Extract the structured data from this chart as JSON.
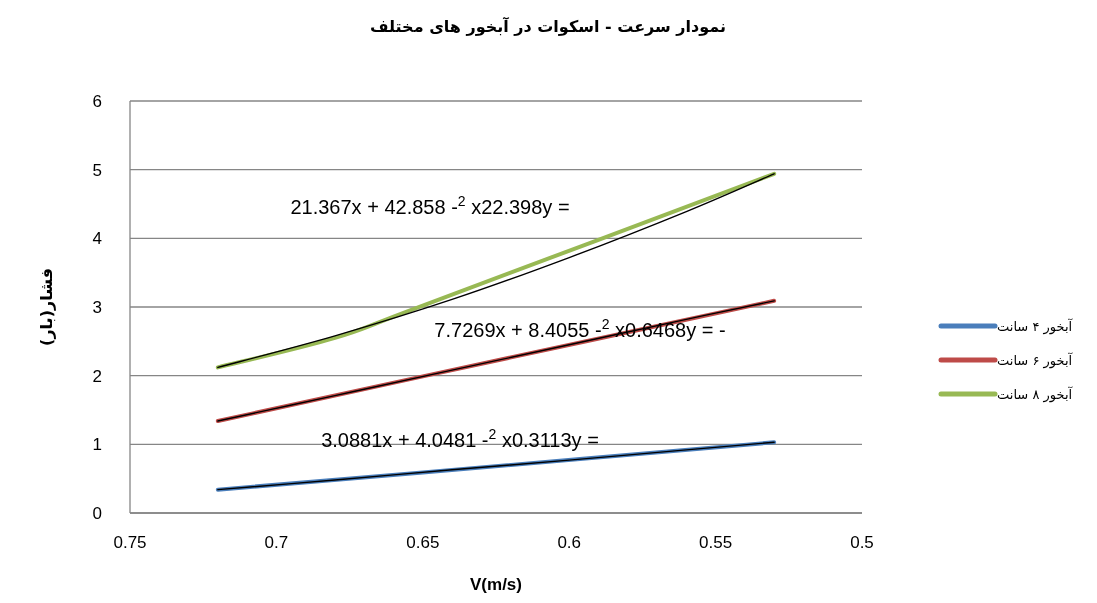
{
  "chart_data": {
    "type": "line",
    "title": "نمودار سرعت - اسکوات در آبخور های مختلف",
    "xlabel": "V(m/s)",
    "ylabel": "فشار(بار)",
    "xlim": [
      0.75,
      0.5
    ],
    "xticks": [
      0.75,
      0.7,
      0.65,
      0.6,
      0.55,
      0.5
    ],
    "ylim": [
      0,
      6
    ],
    "yticks": [
      0,
      1,
      2,
      3,
      4,
      5,
      6
    ],
    "grid": "y",
    "legend": "right",
    "marker": "none",
    "line_style": "solid",
    "series": [
      {
        "name": "آبخور ۴ سانت",
        "color": "#4a7ebb",
        "x": [
          0.72,
          0.65,
          0.53
        ],
        "values": [
          0.34,
          0.59,
          1.03
        ]
      },
      {
        "name": "آبخور ۶ سانت",
        "color": "#be4b48",
        "x": [
          0.72,
          0.65,
          0.53
        ],
        "values": [
          1.34,
          1.99,
          3.09
        ]
      },
      {
        "name": "آبخور ۸ سانت",
        "color": "#98b954",
        "x": [
          0.72,
          0.68,
          0.65,
          0.53
        ],
        "values": [
          2.12,
          2.55,
          3.02,
          4.94
        ]
      },
      {
        "color": "#000000",
        "x": [
          0.72,
          0.68,
          0.64,
          0.6,
          0.56,
          0.53
        ],
        "values": [
          0.34,
          0.48,
          0.63,
          0.77,
          0.92,
          1.03
        ]
      },
      {
        "color": "#000000",
        "x": [
          0.72,
          0.68,
          0.64,
          0.6,
          0.56,
          0.53
        ],
        "values": [
          1.34,
          1.71,
          2.08,
          2.45,
          2.82,
          3.09
        ]
      },
      {
        "color": "#000000",
        "x": [
          0.72,
          0.68,
          0.64,
          0.6,
          0.56,
          0.53
        ],
        "values": [
          2.12,
          2.58,
          3.11,
          3.72,
          4.39,
          4.94
        ]
      }
    ],
    "annotations": [
      "21.367x + 42.858 -$^{2}$ x22.398y =",
      "7.7269x + 8.4055 -$^{2}$ x0.6468y = -",
      "3.0881x + 4.0481 -$^{2}$ x0.3113y ="
    ]
  }
}
